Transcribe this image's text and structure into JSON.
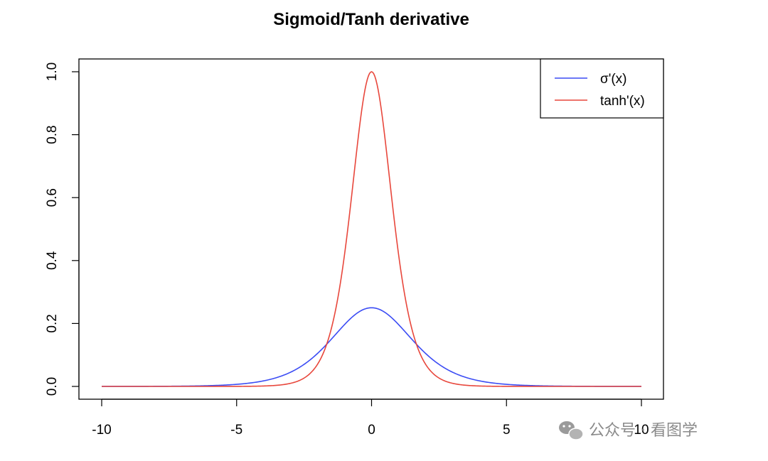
{
  "chart_data": {
    "type": "line",
    "title": "Sigmoid/Tanh derivative",
    "xlabel": "",
    "ylabel": "",
    "xlim": [
      -10,
      10
    ],
    "ylim": [
      0,
      1
    ],
    "x_ticks": [
      -10,
      -5,
      0,
      5,
      10
    ],
    "x_tick_labels": [
      "-10",
      "-5",
      "0",
      "5",
      "10"
    ],
    "y_ticks": [
      0,
      0.2,
      0.4,
      0.6,
      0.8,
      1
    ],
    "y_tick_labels": [
      "0.0",
      "0.2",
      "0.4",
      "0.6",
      "0.8",
      "1.0"
    ],
    "x": [
      -10,
      -9,
      -8,
      -7,
      -6,
      -5,
      -4.5,
      -4,
      -3.5,
      -3,
      -2.5,
      -2,
      -1.5,
      -1,
      -0.5,
      0,
      0.5,
      1,
      1.5,
      2,
      2.5,
      3,
      3.5,
      4,
      4.5,
      5,
      6,
      7,
      8,
      9,
      10
    ],
    "series": [
      {
        "name": "σ'(x)",
        "color": "#3b4cf4",
        "values": [
          4.54e-05,
          0.000123,
          0.000335,
          0.00091,
          0.00247,
          0.00665,
          0.0109,
          0.0177,
          0.0285,
          0.0452,
          0.0701,
          0.105,
          0.149,
          0.197,
          0.235,
          0.25,
          0.235,
          0.197,
          0.149,
          0.105,
          0.0701,
          0.0452,
          0.0285,
          0.0177,
          0.0109,
          0.00665,
          0.00247,
          0.00091,
          0.000335,
          0.000123,
          4.54e-05
        ]
      },
      {
        "name": "tanh'(x)",
        "color": "#e8473c",
        "values": [
          0,
          0,
          4.5e-07,
          3.32e-06,
          2.46e-05,
          0.000182,
          0.000494,
          0.00134,
          0.00364,
          0.00987,
          0.0266,
          0.0707,
          0.181,
          0.42,
          0.786,
          1.0,
          0.786,
          0.42,
          0.181,
          0.0707,
          0.0266,
          0.00987,
          0.00364,
          0.00134,
          0.000494,
          0.000182,
          2.46e-05,
          3.32e-06,
          4.5e-07,
          0,
          0
        ]
      }
    ],
    "legend_position": "top-right",
    "grid": false
  },
  "watermark": {
    "text": "公众号 · 看图学"
  }
}
